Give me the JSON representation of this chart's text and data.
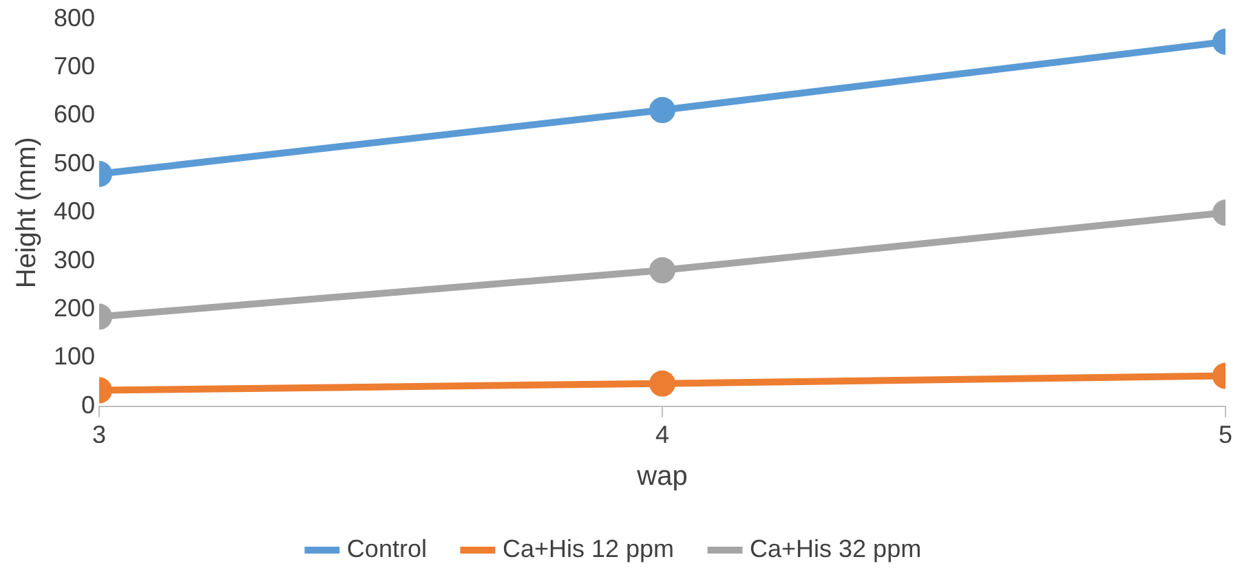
{
  "chart_data": {
    "type": "line",
    "xlabel": "wap",
    "ylabel": "Height (mm)",
    "x": [
      3,
      4,
      5
    ],
    "xlim": [
      3,
      5
    ],
    "xticks": [
      3,
      4,
      5
    ],
    "ylim": [
      0,
      800
    ],
    "yticks": [
      0,
      100,
      200,
      300,
      400,
      500,
      600,
      700,
      800
    ],
    "series": [
      {
        "name": "Control",
        "color": "#5b9bd5",
        "values": [
          480,
          612,
          753
        ]
      },
      {
        "name": "Ca+His 12 ppm",
        "color": "#ed7d31",
        "values": [
          33,
          47,
          63
        ]
      },
      {
        "name": "Ca+His 32 ppm",
        "color": "#a5a5a5",
        "values": [
          185,
          281,
          400
        ]
      }
    ],
    "grid": false,
    "legend": "bottom",
    "marker": "circle",
    "line_style": "solid"
  }
}
